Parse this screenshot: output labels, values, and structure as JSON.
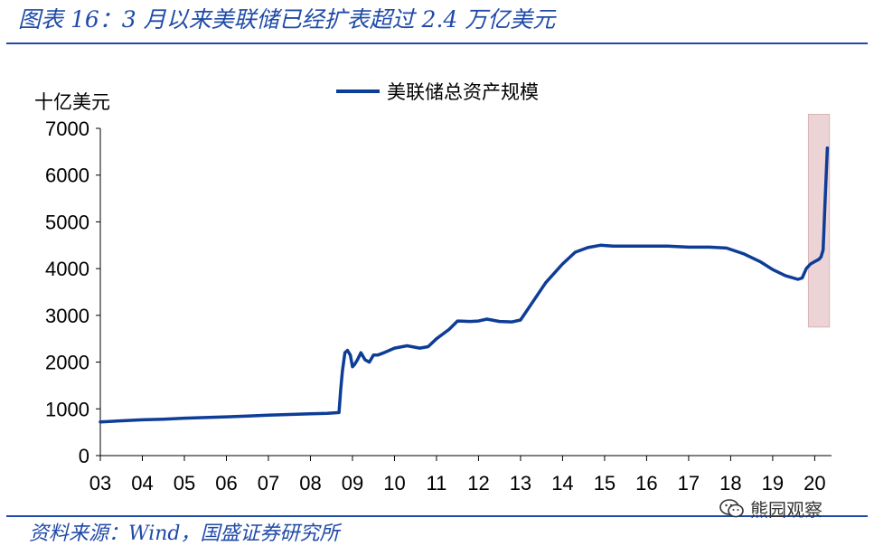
{
  "title": "图表 16：3 月以来美联储已经扩表超过 2.4 万亿美元",
  "source": "资料来源：Wind，国盛证券研究所",
  "watermark": "熊园观察",
  "colors": {
    "accent": "#1f4aa8",
    "line": "#0d3d96",
    "highlight": "#ecd4d6"
  },
  "chart_data": {
    "type": "line",
    "title": "",
    "xlabel": "",
    "ylabel": "十亿美元",
    "ylim": [
      0,
      7000
    ],
    "yticks": [
      0,
      1000,
      2000,
      3000,
      4000,
      5000,
      6000,
      7000
    ],
    "xlim": [
      2003.0,
      2020.4
    ],
    "xticks": [
      "03",
      "04",
      "05",
      "06",
      "07",
      "08",
      "09",
      "10",
      "11",
      "12",
      "13",
      "14",
      "15",
      "16",
      "17",
      "18",
      "19",
      "20"
    ],
    "legend": {
      "position": "top-center",
      "entries": [
        "美联储总资产规模"
      ]
    },
    "grid": false,
    "highlight_range": {
      "x": [
        2019.85,
        2020.35
      ],
      "y": [
        2750,
        7300
      ]
    },
    "series": [
      {
        "name": "美联储总资产规模",
        "x": [
          2003.0,
          2003.5,
          2004.0,
          2004.5,
          2005.0,
          2005.5,
          2006.0,
          2006.5,
          2007.0,
          2007.5,
          2008.0,
          2008.4,
          2008.68,
          2008.72,
          2008.76,
          2008.82,
          2008.88,
          2008.95,
          2009.0,
          2009.05,
          2009.12,
          2009.2,
          2009.3,
          2009.4,
          2009.5,
          2009.6,
          2009.75,
          2010.0,
          2010.3,
          2010.6,
          2010.8,
          2011.0,
          2011.3,
          2011.5,
          2011.8,
          2012.0,
          2012.2,
          2012.5,
          2012.8,
          2013.0,
          2013.3,
          2013.6,
          2014.0,
          2014.3,
          2014.6,
          2014.9,
          2015.2,
          2015.6,
          2016.0,
          2016.5,
          2017.0,
          2017.5,
          2017.9,
          2018.3,
          2018.7,
          2019.0,
          2019.3,
          2019.6,
          2019.7,
          2019.8,
          2019.9,
          2020.0,
          2020.1,
          2020.15,
          2020.2,
          2020.25,
          2020.3
        ],
        "values": [
          720,
          745,
          765,
          780,
          800,
          815,
          830,
          845,
          865,
          880,
          895,
          905,
          920,
          1400,
          1800,
          2200,
          2250,
          2150,
          1900,
          1950,
          2050,
          2200,
          2050,
          2000,
          2150,
          2150,
          2200,
          2300,
          2350,
          2300,
          2330,
          2500,
          2700,
          2880,
          2870,
          2880,
          2920,
          2870,
          2860,
          2900,
          3300,
          3700,
          4100,
          4350,
          4450,
          4500,
          4480,
          4480,
          4480,
          4480,
          4460,
          4460,
          4440,
          4320,
          4150,
          3980,
          3850,
          3770,
          3800,
          4000,
          4100,
          4150,
          4200,
          4250,
          4400,
          5500,
          6580
        ]
      }
    ]
  }
}
